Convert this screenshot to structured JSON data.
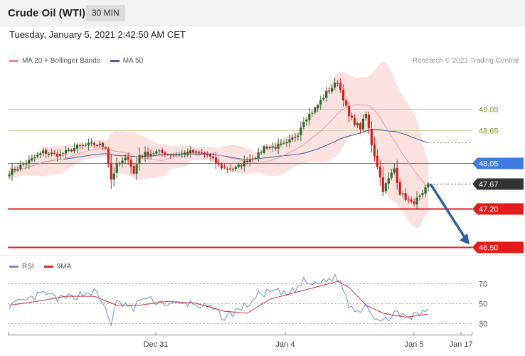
{
  "header": {
    "title": "Crude Oil (WTI)",
    "timeframe": "30 MIN"
  },
  "datetime": "Tuesday, January 5, 2021 2:42:50 AM CET",
  "legend": {
    "bollinger": "MA 20 + Bollinger Bands",
    "ma50": "MA 50"
  },
  "credit": "Research © 2021 Trading Central",
  "rsi_legend": {
    "rsi": "RSI",
    "ma9": "9MA"
  },
  "colors": {
    "up": "#2e6b2e",
    "down": "#cc2222",
    "band": "#fbdcdc",
    "ma20": "#e8a0a0",
    "ma50": "#3a5f9a",
    "level_green": "#c5d49b",
    "level_blue": "#3f7be0",
    "level_red": "#e31b1b",
    "arrow": "#2f5fa0",
    "rsi": "#6b8fd6",
    "rsi_ma": "#d23030"
  },
  "chart_data": [
    {
      "type": "candlestick",
      "title": "Crude Oil (WTI)",
      "interval": "30 MIN",
      "ylim": [
        46.35,
        49.8
      ],
      "x_ticks": [
        "Dec 31",
        "Jan 4",
        "Jan 5",
        "Jan 17"
      ],
      "levels": [
        {
          "value": 49.05,
          "label": "49.05",
          "style": "resistance"
        },
        {
          "value": 48.65,
          "label": "48.65",
          "style": "resistance"
        },
        {
          "value": 48.05,
          "label": "48.05",
          "style": "pivot"
        },
        {
          "value": 47.67,
          "label": "47.67",
          "style": "last"
        },
        {
          "value": 47.2,
          "label": "47.20",
          "style": "support"
        },
        {
          "value": 46.5,
          "label": "46.50",
          "style": "target"
        }
      ],
      "last_price": 47.67,
      "projection": {
        "from": 47.67,
        "to": 46.5
      },
      "ohlc_anchors": [
        [
          0,
          47.88
        ],
        [
          6,
          48.05
        ],
        [
          12,
          48.25
        ],
        [
          18,
          48.2
        ],
        [
          24,
          48.35
        ],
        [
          30,
          48.4
        ],
        [
          34,
          48.35
        ],
        [
          36,
          47.75
        ],
        [
          38,
          48.0
        ],
        [
          42,
          48.15
        ],
        [
          44,
          47.85
        ],
        [
          46,
          48.2
        ],
        [
          52,
          48.25
        ],
        [
          58,
          48.2
        ],
        [
          64,
          48.25
        ],
        [
          70,
          48.2
        ],
        [
          74,
          48.0
        ],
        [
          76,
          47.95
        ],
        [
          80,
          47.95
        ],
        [
          84,
          48.1
        ],
        [
          88,
          48.2
        ],
        [
          90,
          48.35
        ],
        [
          94,
          48.35
        ],
        [
          98,
          48.4
        ],
        [
          102,
          48.6
        ],
        [
          104,
          48.85
        ],
        [
          108,
          49.05
        ],
        [
          112,
          49.35
        ],
        [
          116,
          49.55
        ],
        [
          118,
          49.25
        ],
        [
          120,
          48.9
        ],
        [
          124,
          48.7
        ],
        [
          126,
          48.95
        ],
        [
          128,
          48.4
        ],
        [
          130,
          48.0
        ],
        [
          132,
          47.55
        ],
        [
          136,
          47.95
        ],
        [
          138,
          47.5
        ],
        [
          142,
          47.3
        ],
        [
          146,
          47.45
        ],
        [
          148,
          47.67
        ]
      ]
    },
    {
      "type": "line",
      "title": "RSI",
      "series": [
        {
          "name": "RSI"
        },
        {
          "name": "9MA"
        }
      ],
      "ylim": [
        22,
        80
      ],
      "y_ticks": [
        30,
        50,
        70
      ],
      "rsi_anchors": [
        [
          0,
          48
        ],
        [
          6,
          52
        ],
        [
          12,
          60
        ],
        [
          18,
          54
        ],
        [
          24,
          58
        ],
        [
          30,
          62
        ],
        [
          34,
          45
        ],
        [
          36,
          30
        ],
        [
          38,
          50
        ],
        [
          42,
          48
        ],
        [
          44,
          42
        ],
        [
          46,
          55
        ],
        [
          52,
          52
        ],
        [
          58,
          48
        ],
        [
          64,
          50
        ],
        [
          70,
          46
        ],
        [
          74,
          40
        ],
        [
          76,
          35
        ],
        [
          80,
          42
        ],
        [
          84,
          48
        ],
        [
          88,
          58
        ],
        [
          90,
          60
        ],
        [
          94,
          62
        ],
        [
          98,
          58
        ],
        [
          102,
          66
        ],
        [
          104,
          72
        ],
        [
          108,
          68
        ],
        [
          112,
          74
        ],
        [
          116,
          76
        ],
        [
          118,
          64
        ],
        [
          120,
          48
        ],
        [
          124,
          42
        ],
        [
          126,
          52
        ],
        [
          128,
          40
        ],
        [
          130,
          34
        ],
        [
          132,
          30
        ],
        [
          136,
          42
        ],
        [
          138,
          36
        ],
        [
          142,
          36
        ],
        [
          146,
          40
        ],
        [
          148,
          46
        ]
      ],
      "ma9_anchors": [
        [
          0,
          48
        ],
        [
          10,
          52
        ],
        [
          20,
          57
        ],
        [
          30,
          57
        ],
        [
          38,
          48
        ],
        [
          46,
          48
        ],
        [
          56,
          52
        ],
        [
          66,
          50
        ],
        [
          76,
          42
        ],
        [
          84,
          40
        ],
        [
          92,
          54
        ],
        [
          100,
          60
        ],
        [
          108,
          66
        ],
        [
          116,
          72
        ],
        [
          120,
          66
        ],
        [
          126,
          48
        ],
        [
          132,
          40
        ],
        [
          140,
          36
        ],
        [
          148,
          39
        ]
      ]
    }
  ]
}
